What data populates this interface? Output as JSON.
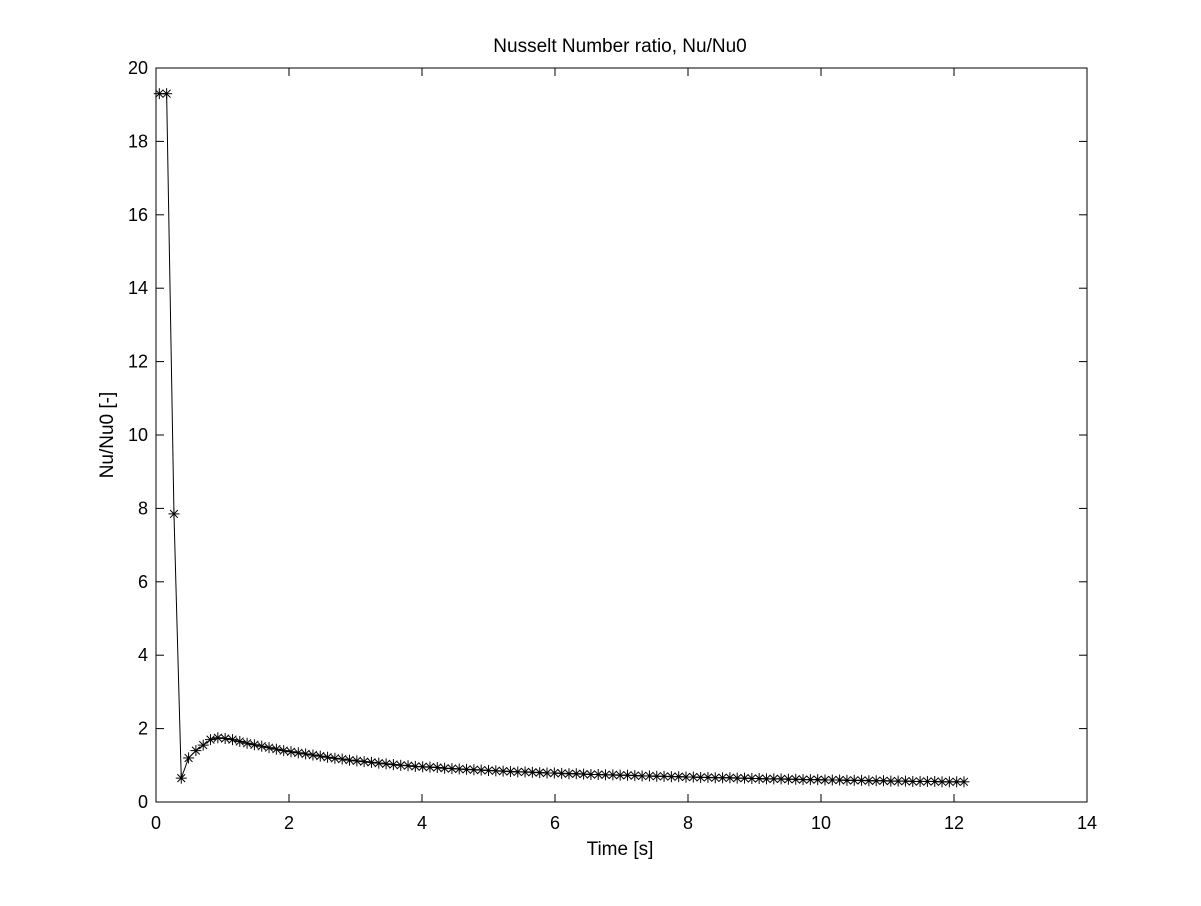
{
  "chart_data": {
    "type": "line",
    "title": "Nusselt Number ratio, Nu/Nu0",
    "xlabel": "Time [s]",
    "ylabel": "Nu/Nu0 [-]",
    "xlim": [
      0,
      14
    ],
    "ylim": [
      0,
      20
    ],
    "xticks": [
      "0",
      "2",
      "4",
      "6",
      "8",
      "10",
      "12",
      "14"
    ],
    "yticks": [
      "0",
      "2",
      "4",
      "6",
      "8",
      "10",
      "12",
      "14",
      "16",
      "18",
      "20"
    ],
    "grid": false,
    "marker": "asterisk",
    "line_color": "#000000",
    "series": [
      {
        "x": [
          0.05,
          0.16,
          0.27,
          0.38,
          0.49,
          0.6,
          0.71,
          0.82,
          0.93,
          1.04,
          1.15,
          1.26,
          1.37,
          1.48,
          1.59,
          1.7,
          1.81,
          1.92,
          2.03,
          2.14,
          2.25,
          2.36,
          2.47,
          2.58,
          2.69,
          2.8,
          2.91,
          3.02,
          3.13,
          3.24,
          3.35,
          3.46,
          3.57,
          3.68,
          3.79,
          3.9,
          4.01,
          4.12,
          4.23,
          4.34,
          4.45,
          4.56,
          4.67,
          4.78,
          4.89,
          5.0,
          5.11,
          5.22,
          5.33,
          5.44,
          5.55,
          5.66,
          5.77,
          5.88,
          5.99,
          6.1,
          6.21,
          6.32,
          6.43,
          6.54,
          6.65,
          6.76,
          6.87,
          6.98,
          7.09,
          7.2,
          7.31,
          7.42,
          7.53,
          7.64,
          7.75,
          7.86,
          7.97,
          8.08,
          8.19,
          8.3,
          8.41,
          8.52,
          8.63,
          8.74,
          8.85,
          8.96,
          9.07,
          9.18,
          9.29,
          9.4,
          9.51,
          9.62,
          9.73,
          9.84,
          9.95,
          10.06,
          10.17,
          10.28,
          10.39,
          10.5,
          10.61,
          10.72,
          10.83,
          10.94,
          11.05,
          11.16,
          11.27,
          11.38,
          11.49,
          11.6,
          11.71,
          11.82,
          11.93,
          12.04,
          12.15
        ],
        "y": [
          19.3,
          19.3,
          7.85,
          0.65,
          1.2,
          1.4,
          1.55,
          1.7,
          1.75,
          1.73,
          1.7,
          1.65,
          1.6,
          1.56,
          1.52,
          1.48,
          1.44,
          1.4,
          1.37,
          1.34,
          1.31,
          1.28,
          1.25,
          1.22,
          1.19,
          1.17,
          1.14,
          1.12,
          1.1,
          1.08,
          1.06,
          1.04,
          1.02,
          1.0,
          0.99,
          0.97,
          0.96,
          0.95,
          0.94,
          0.92,
          0.91,
          0.9,
          0.89,
          0.88,
          0.87,
          0.86,
          0.85,
          0.84,
          0.83,
          0.82,
          0.82,
          0.81,
          0.8,
          0.79,
          0.79,
          0.78,
          0.77,
          0.77,
          0.76,
          0.75,
          0.75,
          0.74,
          0.74,
          0.73,
          0.73,
          0.72,
          0.71,
          0.71,
          0.7,
          0.7,
          0.69,
          0.69,
          0.68,
          0.68,
          0.67,
          0.67,
          0.66,
          0.66,
          0.66,
          0.65,
          0.65,
          0.64,
          0.64,
          0.63,
          0.63,
          0.63,
          0.62,
          0.62,
          0.61,
          0.61,
          0.61,
          0.6,
          0.6,
          0.6,
          0.59,
          0.59,
          0.59,
          0.58,
          0.58,
          0.58,
          0.57,
          0.57,
          0.57,
          0.56,
          0.56,
          0.56,
          0.56,
          0.55,
          0.55,
          0.55,
          0.55
        ]
      }
    ]
  }
}
